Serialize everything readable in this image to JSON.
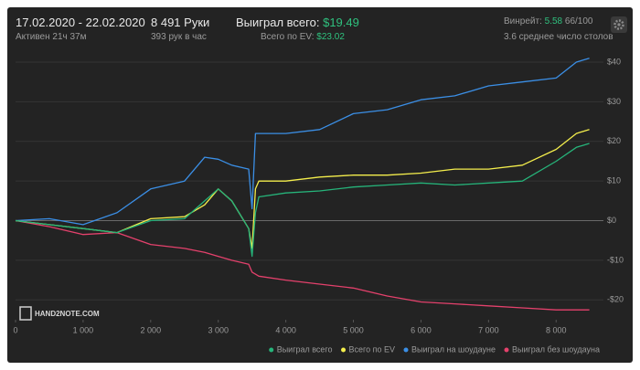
{
  "header": {
    "period": "17.02.2020 - 22.02.2020",
    "active": "Активен 21ч 37м",
    "hands": "8 491 Руки",
    "hands_per_hour": "393 рук в час",
    "won_label": "Выиграл всего:",
    "won_value": "$19.49",
    "ev_label": "Всего по EV:",
    "ev_value": "$23.02",
    "winrate_label": "Винрейт:",
    "winrate_value": "5.58",
    "winrate_unit": "66/100",
    "tables": "3.6 среднее число столов",
    "watermark": "HAND2NOTE.COM"
  },
  "chart_data": {
    "type": "line",
    "x": [
      0,
      500,
      1000,
      1500,
      2000,
      2500,
      2800,
      3000,
      3200,
      3450,
      3500,
      3550,
      3600,
      4000,
      4500,
      5000,
      5500,
      6000,
      6500,
      7000,
      7500,
      8000,
      8300,
      8491
    ],
    "series": [
      {
        "name": "Выиграл всего",
        "color": "#26b47a",
        "values": [
          0,
          -1,
          -2,
          -3,
          0,
          0.5,
          5,
          8,
          5,
          -2,
          -9,
          2,
          6,
          7,
          7.5,
          8.5,
          9,
          9.5,
          9,
          9.5,
          10,
          15,
          18.5,
          19.49
        ]
      },
      {
        "name": "Всего по EV",
        "color": "#f4ee4c",
        "values": [
          0,
          -1,
          -2,
          -3,
          0.5,
          1,
          4,
          8,
          5,
          -2,
          -7,
          8,
          10,
          10,
          11,
          11.5,
          11.5,
          12,
          13,
          13,
          14,
          18,
          22,
          23.02
        ]
      },
      {
        "name": "Выиграл на шоудауне",
        "color": "#3b8fe6",
        "values": [
          0,
          0.5,
          -1,
          2,
          8,
          10,
          16,
          15.5,
          14,
          13,
          3,
          22,
          22,
          22,
          23,
          27,
          28,
          30.5,
          31.5,
          34,
          35,
          36,
          40,
          41
        ]
      },
      {
        "name": "Выиграл без шоудауна",
        "color": "#e4416c",
        "values": [
          0,
          -1.5,
          -3.5,
          -3,
          -6,
          -7,
          -8,
          -9,
          -10,
          -11,
          -13,
          -13.5,
          -14,
          -15,
          -16,
          -17,
          -19,
          -20.5,
          -21,
          -21.5,
          -22,
          -22.5,
          -22.5,
          -22.5
        ]
      }
    ],
    "xlim": [
      0,
      8700
    ],
    "ylim": [
      -25,
      43
    ],
    "xticks": [
      0,
      {
        "value": 1000,
        "label": "1 000"
      },
      {
        "value": 2000,
        "label": "2 000"
      },
      {
        "value": 3000,
        "label": "3 000"
      },
      {
        "value": 4000,
        "label": "4 000"
      },
      {
        "value": 5000,
        "label": "5 000"
      },
      {
        "value": 6000,
        "label": "6 000"
      },
      {
        "value": 7000,
        "label": "7 000"
      },
      {
        "value": 8000,
        "label": "8 000"
      }
    ],
    "yticks": [
      {
        "value": 40,
        "label": "$40"
      },
      {
        "value": 30,
        "label": "$30"
      },
      {
        "value": 20,
        "label": "$20"
      },
      {
        "value": 10,
        "label": "$10"
      },
      {
        "value": 0,
        "label": "$0"
      },
      {
        "value": -10,
        "label": "-$10"
      },
      {
        "value": -20,
        "label": "-$20"
      }
    ],
    "grid": true,
    "legend": "bottom-right"
  }
}
